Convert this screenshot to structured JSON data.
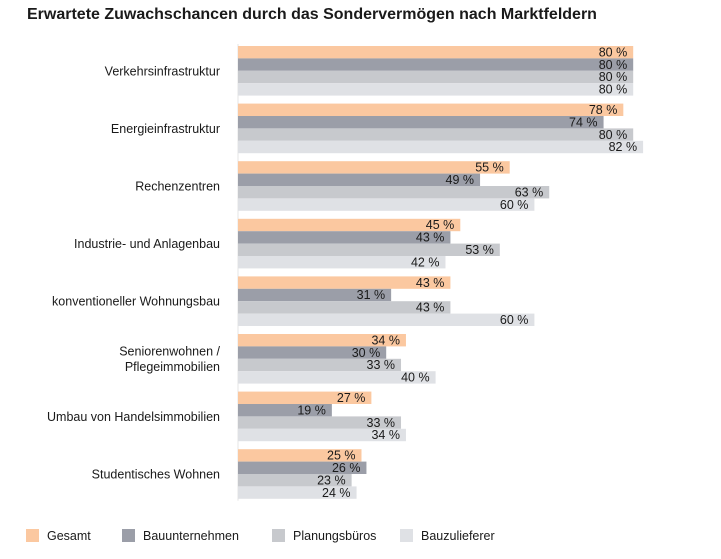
{
  "chart_data": {
    "type": "bar",
    "orientation": "horizontal",
    "title": "Erwartete Zuwachschancen durch das Sondervermögen nach Marktfeldern",
    "xlabel": "",
    "ylabel": "",
    "xlim": [
      0,
      100
    ],
    "value_suffix": " %",
    "grid": false,
    "legend_position": "bottom",
    "categories": [
      [
        "Verkehrsinfrastruktur"
      ],
      [
        "Energieinfrastruktur"
      ],
      [
        "Rechenzentren"
      ],
      [
        "Industrie- und Anlagenbau"
      ],
      [
        "konventioneller Wohnungsbau"
      ],
      [
        "Seniorenwohnen /",
        "Pflegeimmobilien"
      ],
      [
        "Umbau von Handelsimmobilien"
      ],
      [
        "Studentisches Wohnen"
      ]
    ],
    "series": [
      {
        "name": "Gesamt",
        "color": "#fbc8a0",
        "values": [
          80,
          78,
          55,
          45,
          43,
          34,
          27,
          25
        ]
      },
      {
        "name": "Bauunternehmen",
        "color": "#9b9ea8",
        "values": [
          80,
          74,
          49,
          43,
          31,
          30,
          19,
          26
        ]
      },
      {
        "name": "Planungsbüros",
        "color": "#c7c9cd",
        "values": [
          80,
          80,
          63,
          53,
          43,
          33,
          33,
          23
        ]
      },
      {
        "name": "Bauzulieferer",
        "color": "#dfe1e5",
        "values": [
          80,
          82,
          60,
          42,
          60,
          40,
          34,
          24
        ]
      }
    ]
  }
}
